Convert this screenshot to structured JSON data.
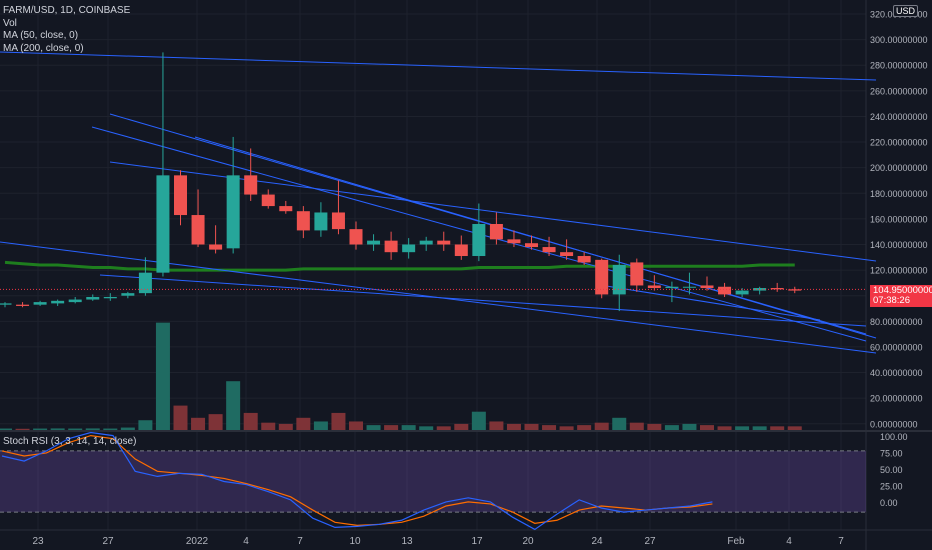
{
  "legend": {
    "symbol": "FARM/USD, 1D, COINBASE",
    "vol": "Vol",
    "ma50": "MA (50, close, 0)",
    "ma200": "MA (200, close, 0)"
  },
  "rsi_legend": "Stoch RSI (3, 3, 14, 14, close)",
  "price_axis": {
    "currency": "USD",
    "ticks": [
      "320.00000000",
      "300.00000000",
      "280.00000000",
      "260.00000000",
      "240.00000000",
      "220.00000000",
      "200.00000000",
      "180.00000000",
      "160.00000000",
      "140.00000000",
      "120.00000000",
      "100.00000000",
      "80.00000000",
      "60.00000000",
      "40.00000000",
      "20.00000000",
      "0.00000000"
    ],
    "current_price": "104.95000000",
    "countdown": "07:38:26"
  },
  "rsi_axis": {
    "ticks": [
      "100.00",
      "75.00",
      "50.00",
      "25.00",
      "0.00"
    ]
  },
  "time_axis": {
    "labels": [
      "23",
      "27",
      "2022",
      "4",
      "7",
      "10",
      "13",
      "17",
      "20",
      "24",
      "27",
      "Feb",
      "4",
      "7"
    ]
  },
  "colors": {
    "up": "#26a69a",
    "down": "#ef5350",
    "ma": "#1e7e1e",
    "trend": "#2962ff",
    "rsi_k": "#2962ff",
    "rsi_d": "#ff6d00",
    "band": "#7e57c2"
  },
  "chart_data": {
    "type": "candlestick",
    "candles": [
      {
        "o": 93,
        "h": 95,
        "l": 91,
        "c": 94,
        "v": 1.2
      },
      {
        "o": 93,
        "h": 95,
        "l": 91,
        "c": 92,
        "v": 1.0
      },
      {
        "o": 93,
        "h": 96,
        "l": 92,
        "c": 95,
        "v": 1.2
      },
      {
        "o": 94,
        "h": 97,
        "l": 92,
        "c": 96,
        "v": 1.3
      },
      {
        "o": 95,
        "h": 99,
        "l": 94,
        "c": 97,
        "v": 1.2
      },
      {
        "o": 97,
        "h": 101,
        "l": 96,
        "c": 99,
        "v": 1.3
      },
      {
        "o": 98,
        "h": 102,
        "l": 96,
        "c": 99,
        "v": 1.2
      },
      {
        "o": 100,
        "h": 103,
        "l": 98,
        "c": 102,
        "v": 2.0
      },
      {
        "o": 102,
        "h": 130,
        "l": 100,
        "c": 118,
        "v": 8.0
      },
      {
        "o": 118,
        "h": 290,
        "l": 115,
        "c": 194,
        "v": 88
      },
      {
        "o": 194,
        "h": 198,
        "l": 155,
        "c": 163,
        "v": 20
      },
      {
        "o": 163,
        "h": 183,
        "l": 138,
        "c": 140,
        "v": 10
      },
      {
        "o": 140,
        "h": 155,
        "l": 133,
        "c": 136,
        "v": 13
      },
      {
        "o": 137,
        "h": 224,
        "l": 133,
        "c": 194,
        "v": 40
      },
      {
        "o": 194,
        "h": 215,
        "l": 174,
        "c": 179,
        "v": 14
      },
      {
        "o": 179,
        "h": 183,
        "l": 168,
        "c": 170,
        "v": 6
      },
      {
        "o": 170,
        "h": 174,
        "l": 164,
        "c": 166,
        "v": 5
      },
      {
        "o": 166,
        "h": 170,
        "l": 145,
        "c": 151,
        "v": 10
      },
      {
        "o": 151,
        "h": 173,
        "l": 146,
        "c": 165,
        "v": 7
      },
      {
        "o": 165,
        "h": 190,
        "l": 148,
        "c": 152,
        "v": 14
      },
      {
        "o": 152,
        "h": 158,
        "l": 136,
        "c": 140,
        "v": 7
      },
      {
        "o": 140,
        "h": 148,
        "l": 135,
        "c": 143,
        "v": 4
      },
      {
        "o": 143,
        "h": 150,
        "l": 128,
        "c": 134,
        "v": 4
      },
      {
        "o": 134,
        "h": 145,
        "l": 129,
        "c": 140,
        "v": 4
      },
      {
        "o": 140,
        "h": 146,
        "l": 135,
        "c": 143,
        "v": 3
      },
      {
        "o": 143,
        "h": 150,
        "l": 135,
        "c": 140,
        "v": 3
      },
      {
        "o": 140,
        "h": 147,
        "l": 128,
        "c": 131,
        "v": 5
      },
      {
        "o": 131,
        "h": 172,
        "l": 127,
        "c": 156,
        "v": 15
      },
      {
        "o": 156,
        "h": 165,
        "l": 140,
        "c": 144,
        "v": 7
      },
      {
        "o": 144,
        "h": 151,
        "l": 138,
        "c": 141,
        "v": 5
      },
      {
        "o": 141,
        "h": 147,
        "l": 136,
        "c": 138,
        "v": 5
      },
      {
        "o": 138,
        "h": 146,
        "l": 131,
        "c": 134,
        "v": 4
      },
      {
        "o": 134,
        "h": 144,
        "l": 128,
        "c": 131,
        "v": 3
      },
      {
        "o": 131,
        "h": 134,
        "l": 124,
        "c": 126,
        "v": 4
      },
      {
        "o": 128,
        "h": 129,
        "l": 98,
        "c": 101,
        "v": 6
      },
      {
        "o": 101,
        "h": 132,
        "l": 88,
        "c": 124,
        "v": 10
      },
      {
        "o": 126,
        "h": 129,
        "l": 103,
        "c": 108,
        "v": 6
      },
      {
        "o": 108,
        "h": 116,
        "l": 104,
        "c": 106,
        "v": 5
      },
      {
        "o": 106,
        "h": 111,
        "l": 95,
        "c": 107,
        "v": 4
      },
      {
        "o": 107,
        "h": 118,
        "l": 101,
        "c": 107,
        "v": 5
      },
      {
        "o": 108,
        "h": 115,
        "l": 104,
        "c": 106,
        "v": 4
      },
      {
        "o": 107,
        "h": 110,
        "l": 99,
        "c": 101,
        "v": 3
      },
      {
        "o": 101,
        "h": 106,
        "l": 99,
        "c": 104,
        "v": 3
      },
      {
        "o": 104,
        "h": 107,
        "l": 101,
        "c": 106,
        "v": 3
      },
      {
        "o": 106,
        "h": 110,
        "l": 103,
        "c": 105,
        "v": 3
      },
      {
        "o": 105,
        "h": 107,
        "l": 102,
        "c": 104,
        "v": 3
      }
    ],
    "ma_values": [
      126,
      125,
      124,
      124,
      123,
      122,
      122,
      121,
      121,
      120,
      120,
      120,
      120,
      120,
      120,
      120,
      120,
      121,
      121,
      121,
      121,
      121,
      121,
      121,
      121,
      121,
      121,
      122,
      122,
      122,
      122,
      122,
      123,
      123,
      123,
      123,
      123,
      123,
      123,
      123,
      123,
      123,
      123,
      124,
      124,
      124
    ],
    "rsi_k": [
      75,
      70,
      80,
      92,
      98,
      95,
      60,
      55,
      58,
      57,
      50,
      47,
      40,
      32,
      14,
      5,
      6,
      8,
      12,
      22,
      30,
      34,
      30,
      15,
      3,
      18,
      32,
      24,
      20,
      22,
      24,
      26,
      30
    ],
    "rsi_d": [
      80,
      75,
      78,
      88,
      95,
      92,
      72,
      60,
      58,
      56,
      53,
      48,
      42,
      35,
      22,
      10,
      7,
      8,
      10,
      16,
      26,
      30,
      28,
      20,
      9,
      12,
      22,
      26,
      24,
      22,
      24,
      25,
      28
    ],
    "ylim": [
      0,
      320
    ]
  }
}
